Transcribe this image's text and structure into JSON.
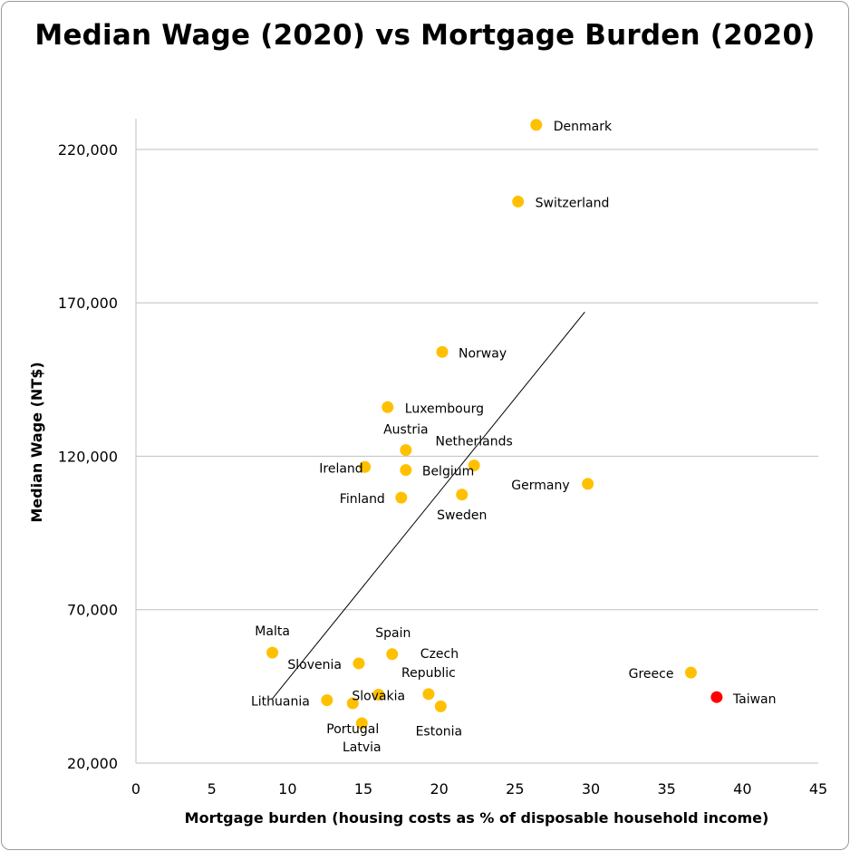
{
  "chart_data": {
    "type": "scatter",
    "title": "Median Wage (2020) vs Mortgage Burden (2020)",
    "xlabel": "Mortgage burden (housing costs as % of disposable household income)",
    "ylabel": "Median Wage (NT$)",
    "xlim": [
      0,
      45
    ],
    "ylim": [
      20000,
      230000
    ],
    "x_ticks": [
      0,
      5,
      10,
      15,
      20,
      25,
      30,
      35,
      40,
      45
    ],
    "y_ticks": [
      20000,
      70000,
      120000,
      170000,
      220000
    ],
    "y_tick_labels": [
      "20,000",
      "70,000",
      "120,000",
      "170,000",
      "220,000"
    ],
    "grid": "horizontal",
    "colors": {
      "point": "#FFC000",
      "highlight": "#FF0000",
      "grid": "#BFBFBF",
      "trendline": "#000000"
    },
    "trendline": {
      "x": [
        9.0,
        29.6
      ],
      "y": [
        41000,
        167000
      ]
    },
    "points": [
      {
        "label": "Denmark",
        "x": 26.4,
        "y": 228000
      },
      {
        "label": "Switzerland",
        "x": 25.2,
        "y": 203000
      },
      {
        "label": "Norway",
        "x": 20.2,
        "y": 154000
      },
      {
        "label": "Luxembourg",
        "x": 16.6,
        "y": 136000
      },
      {
        "label": "Austria",
        "x": 17.8,
        "y": 122000
      },
      {
        "label": "Netherlands",
        "x": 22.3,
        "y": 117000
      },
      {
        "label": "Ireland",
        "x": 15.1,
        "y": 116500
      },
      {
        "label": "Belgium",
        "x": 17.8,
        "y": 115500
      },
      {
        "label": "Germany",
        "x": 29.8,
        "y": 111000
      },
      {
        "label": "Sweden",
        "x": 21.5,
        "y": 107500
      },
      {
        "label": "Finland",
        "x": 17.5,
        "y": 106500
      },
      {
        "label": "Malta",
        "x": 9.0,
        "y": 56000
      },
      {
        "label": "Spain",
        "x": 16.9,
        "y": 55500
      },
      {
        "label": "Slovenia",
        "x": 14.7,
        "y": 52500
      },
      {
        "label": "Czech Republic",
        "x": 19.3,
        "y": 42500
      },
      {
        "label": "Slovakia",
        "x": 16.0,
        "y": 42300
      },
      {
        "label": "Lithuania",
        "x": 12.6,
        "y": 40500
      },
      {
        "label": "Portugal",
        "x": 14.3,
        "y": 39500
      },
      {
        "label": "Estonia",
        "x": 20.1,
        "y": 38500
      },
      {
        "label": "Latvia",
        "x": 14.9,
        "y": 33000
      },
      {
        "label": "Greece",
        "x": 36.6,
        "y": 49500
      },
      {
        "label": "Taiwan",
        "x": 38.3,
        "y": 41500,
        "highlight": true
      }
    ]
  }
}
